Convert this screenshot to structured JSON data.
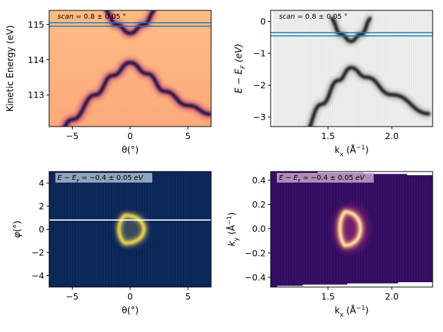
{
  "colors": {
    "magma_dark": "#1b0c41",
    "magma_mid": "#b5367a",
    "magma_light": "#fca06a",
    "magma_pale": "#fcfdbf",
    "gray_bg": "#f0f0f0",
    "blue_line": "#1f77b4",
    "cividis_dark": "#00224e",
    "cividis_light": "#fee838",
    "white_line": "#ffffff",
    "label_box_blue": "#aab8d0",
    "label_box_purple": "#c7a3c9"
  },
  "chart_data": [
    {
      "type": "heatmap",
      "panel": "top-left",
      "colormap": "magma",
      "annotation": {
        "prefix": "scan",
        "text": " = 0.8 ± 0.05 °"
      },
      "xlabel": "θ(°)",
      "ylabel": "Kinetic Energy (eV)",
      "xlim": [
        -7,
        7
      ],
      "ylim": [
        112.1,
        115.4
      ],
      "xticks": [
        -5,
        0,
        5
      ],
      "xtick_labels": [
        "−5",
        "0",
        "5"
      ],
      "yticks": [
        113,
        114,
        115
      ],
      "ytick_labels": [
        "113",
        "114",
        "115"
      ],
      "hlines": [
        115.05,
        114.95
      ],
      "bands": [
        {
          "name": "",
          "x": [
            -7,
            -5,
            -3,
            -1.5,
            0,
            1.5,
            3,
            5,
            7
          ],
          "y": [
            111.2,
            112.3,
            113.0,
            113.55,
            113.92,
            113.6,
            113.1,
            112.7,
            112.45
          ]
        },
        {
          "name": "",
          "x": [
            -2.2,
            -1.2,
            0,
            1.2,
            2.2
          ],
          "y": [
            115.4,
            115.0,
            114.75,
            115.0,
            115.4
          ]
        }
      ]
    },
    {
      "type": "heatmap",
      "panel": "top-right",
      "colormap": "gray_r",
      "annotation": {
        "prefix": "scan",
        "text": " = 0.8 ± 0.05 °"
      },
      "xlabel": "k_x (Å⁻¹)",
      "ylabel": "E − E_F (eV)",
      "xlim": [
        1.05,
        2.32
      ],
      "ylim": [
        -3.3,
        0.35
      ],
      "xticks": [
        1.5,
        2.0
      ],
      "xtick_labels": [
        "1.5",
        "2.0"
      ],
      "yticks": [
        0,
        -1,
        -2,
        -3
      ],
      "ytick_labels": [
        "0",
        "−1",
        "−2",
        "−3"
      ],
      "hlines": [
        -0.35,
        -0.45
      ],
      "bands": [
        {
          "name": "",
          "x": [
            1.3,
            1.45,
            1.58,
            1.68,
            1.8,
            2.0,
            2.3
          ],
          "y": [
            -3.6,
            -2.6,
            -1.85,
            -1.45,
            -1.75,
            -2.3,
            -2.9
          ]
        },
        {
          "name": "",
          "x": [
            1.52,
            1.6,
            1.68,
            1.76,
            1.84
          ],
          "y": [
            0.1,
            -0.4,
            -0.62,
            -0.4,
            0.1
          ]
        }
      ]
    },
    {
      "type": "heatmap",
      "panel": "bottom-left",
      "colormap": "cividis",
      "annotation": {
        "prefix": "E − E_F",
        "text": " = −0.4 ± 0.05 eV"
      },
      "xlabel": "θ(°)",
      "ylabel": "φ(°)",
      "xlim": [
        -7,
        7
      ],
      "ylim": [
        -5,
        5
      ],
      "xticks": [
        -5,
        0,
        5
      ],
      "xtick_labels": [
        "−5",
        "0",
        "5"
      ],
      "yticks": [
        4,
        2,
        0,
        -2,
        -4
      ],
      "ytick_labels": [
        "4",
        "2",
        "0",
        "−2",
        "−4"
      ],
      "hline": 0.8,
      "ring": {
        "cx": 0.2,
        "cy": 0.0,
        "rx": 1.1,
        "ry": 1.2
      }
    },
    {
      "type": "heatmap",
      "panel": "bottom-right",
      "colormap": "magma",
      "annotation": {
        "prefix": "E − E_F",
        "text": " = −0.4 ± 0.05 eV"
      },
      "xlabel": "k_x (Å⁻¹)",
      "ylabel": "k_y (Å⁻¹)",
      "xlim": [
        1.05,
        2.32
      ],
      "ylim": [
        -0.48,
        0.47
      ],
      "xticks": [
        1.5,
        2.0
      ],
      "xtick_labels": [
        "1.5",
        "2.0"
      ],
      "yticks": [
        0.4,
        0.2,
        0.0,
        -0.2,
        -0.4
      ],
      "ytick_labels": [
        "0.4",
        "0.2",
        "0.0",
        "−0.2",
        "−0.4"
      ],
      "ring": {
        "cx": 1.68,
        "cy": 0.0,
        "rx": 0.15,
        "ry": 0.12
      }
    }
  ]
}
